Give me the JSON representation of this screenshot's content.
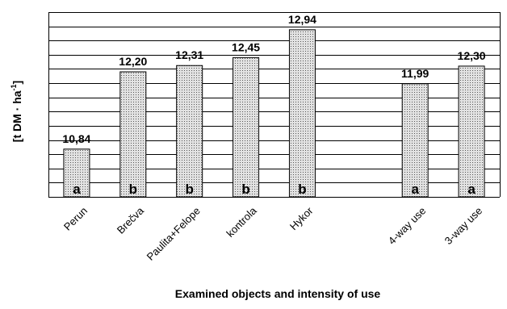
{
  "chart_data": {
    "type": "bar",
    "categories": [
      "Perun",
      "Brečva",
      "Paulita+Felope",
      "kontrola",
      "Hykor",
      "",
      "4-way use",
      "3-way use"
    ],
    "values": [
      10.84,
      12.2,
      12.31,
      12.45,
      12.94,
      null,
      11.99,
      12.3
    ],
    "value_labels": [
      "10,84",
      "12,20",
      "12,31",
      "12,45",
      "12,94",
      "",
      "11,99",
      "12,30"
    ],
    "group_letters": [
      "a",
      "b",
      "b",
      "b",
      "b",
      "",
      "a",
      "a"
    ],
    "xlabel": "Examined objects and intensity of use",
    "ylabel": "[t DM · ha-1]",
    "ylabel_parts": {
      "main": "[t DM · ha",
      "sup": "-1",
      "close": "]"
    },
    "ylim": [
      10,
      13.25
    ],
    "grid": true,
    "colors": {
      "bar_fill": "#d8d8d8",
      "bar_dots": "#555555",
      "grid": "#000000",
      "text": "#000000"
    }
  }
}
